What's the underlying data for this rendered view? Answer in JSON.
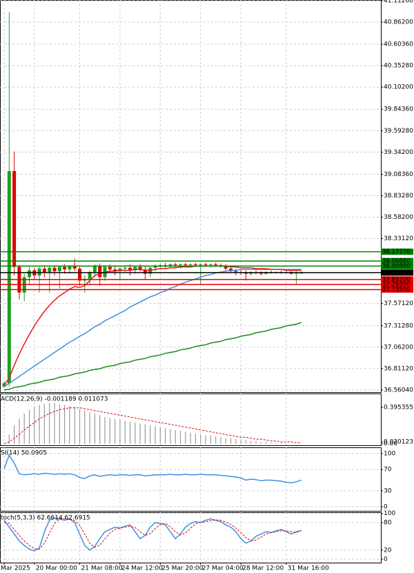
{
  "chart_data": [
    {
      "type": "candlestick",
      "categories": [
        "Mar 2025",
        null,
        null,
        null,
        null,
        null,
        "20 Mar 00:00",
        null,
        null,
        null,
        null,
        null,
        null,
        null,
        null,
        "21 Mar 08:00",
        null,
        null,
        null,
        null,
        null,
        null,
        null,
        "24 Mar 12:00",
        null,
        null,
        null,
        null,
        null,
        null,
        null,
        "25 Mar 20:00",
        null,
        null,
        null,
        null,
        null,
        null,
        null,
        "27 Mar 04:00",
        null,
        null,
        null,
        null,
        null,
        null,
        null,
        "28 Mar 12:00",
        null,
        null,
        null,
        null,
        null,
        null,
        null,
        null,
        "31 Mar 16:00",
        null,
        null,
        null
      ],
      "open": [
        36.6,
        36.64,
        39.12,
        38.0,
        37.7,
        37.88,
        37.96,
        37.9,
        37.98,
        37.94,
        37.99,
        37.95,
        38.0,
        37.97,
        38.01,
        37.98,
        37.84,
        37.86,
        37.94,
        38.01,
        37.88,
        38.0,
        37.97,
        37.95,
        37.98,
        37.99,
        37.96,
        38.0,
        37.97,
        37.92,
        37.99,
        38.01,
        38.02,
        38.01,
        38.03,
        38.02,
        38.03,
        38.02,
        38.03,
        38.02,
        38.03,
        38.02,
        38.03,
        38.02,
        38.01,
        37.98,
        37.95,
        37.94,
        37.93,
        37.92,
        37.94,
        37.93,
        37.92,
        37.94,
        37.93,
        37.94,
        37.93,
        37.94,
        37.92,
        37.93
      ],
      "high": [
        36.66,
        40.98,
        39.35,
        38.02,
        37.92,
        38.0,
        37.99,
        38.0,
        38.02,
        38.01,
        38.02,
        38.01,
        38.03,
        38.02,
        38.1,
        38.0,
        37.9,
        37.96,
        38.03,
        38.04,
        38.02,
        38.03,
        38.02,
        38.0,
        38.02,
        38.03,
        38.01,
        38.03,
        38.01,
        38.0,
        38.03,
        38.04,
        38.05,
        38.04,
        38.05,
        38.04,
        38.05,
        38.04,
        38.05,
        38.04,
        38.05,
        38.04,
        38.05,
        38.04,
        38.03,
        38.0,
        37.98,
        37.97,
        37.96,
        37.95,
        37.96,
        37.95,
        37.95,
        37.96,
        37.95,
        37.96,
        37.95,
        37.95,
        37.95,
        37.95
      ],
      "low": [
        36.58,
        36.6,
        37.9,
        37.62,
        37.6,
        37.8,
        37.85,
        37.7,
        37.88,
        37.7,
        37.9,
        37.75,
        37.92,
        37.92,
        37.95,
        37.78,
        37.7,
        37.8,
        37.88,
        37.78,
        37.84,
        37.93,
        37.9,
        37.84,
        37.93,
        37.9,
        37.92,
        37.95,
        37.85,
        37.88,
        37.95,
        37.97,
        37.99,
        37.98,
        37.99,
        37.98,
        38.0,
        37.99,
        38.0,
        37.8,
        38.0,
        37.99,
        38.0,
        37.99,
        37.96,
        37.93,
        37.9,
        37.91,
        37.84,
        37.9,
        37.91,
        37.9,
        37.91,
        37.92,
        37.92,
        37.92,
        37.92,
        37.91,
        37.8,
        37.92
      ],
      "close": [
        36.64,
        39.12,
        38.0,
        37.7,
        37.88,
        37.96,
        37.9,
        37.98,
        37.94,
        37.99,
        37.95,
        38.0,
        37.97,
        38.01,
        37.98,
        37.84,
        37.86,
        37.94,
        38.01,
        37.88,
        38.0,
        37.97,
        37.95,
        37.98,
        37.99,
        37.96,
        38.0,
        37.97,
        37.92,
        37.99,
        38.01,
        38.02,
        38.01,
        38.03,
        38.02,
        38.03,
        38.02,
        38.03,
        38.02,
        38.03,
        38.02,
        38.03,
        38.02,
        38.01,
        37.98,
        37.95,
        37.94,
        37.93,
        37.92,
        37.94,
        37.93,
        37.92,
        37.94,
        37.93,
        37.94,
        37.93,
        37.94,
        37.92,
        37.93,
        37.93
      ],
      "up_color": "#1f9e1f",
      "down_color": "#e00000",
      "series": [
        {
          "color": "#1a8a1a",
          "values": [
            36.56,
            36.57,
            36.59,
            36.6,
            36.61,
            36.63,
            36.64,
            36.65,
            36.67,
            36.68,
            36.69,
            36.71,
            36.72,
            36.73,
            36.75,
            36.76,
            36.77,
            36.79,
            36.8,
            36.81,
            36.83,
            36.84,
            36.85,
            36.87,
            36.88,
            36.89,
            36.91,
            36.92,
            36.93,
            36.95,
            36.96,
            36.97,
            36.99,
            37.0,
            37.01,
            37.03,
            37.04,
            37.05,
            37.07,
            37.08,
            37.09,
            37.11,
            37.12,
            37.13,
            37.15,
            37.16,
            37.17,
            37.19,
            37.2,
            37.21,
            37.23,
            37.24,
            37.25,
            37.27,
            37.28,
            37.29,
            37.31,
            37.32,
            37.33,
            37.35
          ]
        },
        {
          "color": "#3d8fe0",
          "values": [
            36.6,
            36.64,
            36.68,
            36.72,
            36.76,
            36.8,
            36.84,
            36.88,
            36.92,
            36.96,
            37.0,
            37.04,
            37.08,
            37.12,
            37.15,
            37.19,
            37.22,
            37.26,
            37.3,
            37.33,
            37.37,
            37.4,
            37.43,
            37.46,
            37.49,
            37.53,
            37.56,
            37.59,
            37.62,
            37.65,
            37.67,
            37.7,
            37.72,
            37.75,
            37.77,
            37.8,
            37.82,
            37.84,
            37.86,
            37.88,
            37.9,
            37.91,
            37.93,
            37.94,
            37.95,
            37.96,
            37.96,
            37.97,
            37.97,
            37.97,
            37.97,
            37.97,
            37.97,
            37.97,
            37.97,
            37.97,
            37.97,
            37.97,
            37.97,
            37.97
          ]
        },
        {
          "color": "#e8141a",
          "values": [
            36.62,
            36.7,
            36.85,
            36.98,
            37.1,
            37.21,
            37.31,
            37.4,
            37.48,
            37.55,
            37.61,
            37.66,
            37.7,
            37.74,
            37.77,
            37.76,
            37.78,
            37.84,
            37.9,
            37.92,
            37.94,
            37.95,
            37.95,
            37.96,
            37.96,
            37.96,
            37.97,
            37.97,
            37.96,
            37.96,
            37.97,
            37.98,
            37.98,
            37.99,
            37.99,
            38.0,
            38.0,
            38.0,
            38.01,
            38.01,
            38.01,
            38.01,
            38.01,
            38.01,
            38.01,
            38.0,
            38.0,
            37.99,
            37.99,
            37.99,
            37.98,
            37.98,
            37.98,
            37.97,
            37.97,
            37.97,
            37.96,
            37.96,
            37.96,
            37.96
          ]
        }
      ],
      "levels": [
        {
          "value": 38.1777,
          "label": "38.17770",
          "color": "#008000"
        },
        {
          "value": 38.0688,
          "label": "38.06880",
          "color": "#008000"
        },
        {
          "value": 38.0099,
          "label": "38.00990",
          "color": "#008000"
        },
        {
          "value": 37.8528,
          "label": "37.85280",
          "color": "#e00000"
        },
        {
          "value": 37.7939,
          "label": "37.79390",
          "color": "#e00000"
        },
        {
          "value": 37.735,
          "label": "37.73500",
          "color": "#e00000"
        }
      ],
      "current_price": {
        "value": 37.9335,
        "label": "37.93350",
        "color": "#000000"
      },
      "ylim": [
        36.536,
        41.1205
      ],
      "yticks": [
        {
          "value": 41.1126,
          "label": "41.11260"
        },
        {
          "value": 40.862,
          "label": "40.86200"
        },
        {
          "value": 40.6036,
          "label": "40.60360"
        },
        {
          "value": 40.3528,
          "label": "40.35280"
        },
        {
          "value": 40.102,
          "label": "40.10200"
        },
        {
          "value": 39.8436,
          "label": "39.84360"
        },
        {
          "value": 39.5928,
          "label": "39.59280"
        },
        {
          "value": 39.342,
          "label": "39.34200"
        },
        {
          "value": 39.0836,
          "label": "39.08360"
        },
        {
          "value": 38.8328,
          "label": "38.83280"
        },
        {
          "value": 38.582,
          "label": "38.58200"
        },
        {
          "value": 38.3312,
          "label": "38.33120"
        },
        {
          "value": 37.5712,
          "label": "37.57120"
        },
        {
          "value": 37.3128,
          "label": "37.31280"
        },
        {
          "value": 37.062,
          "label": "37.06200"
        },
        {
          "value": 36.8112,
          "label": "36.81120"
        },
        {
          "value": 36.5604,
          "label": "36.56040"
        }
      ],
      "grid": true
    },
    {
      "type": "macd",
      "title": "ACD(12,26,9) -0.001189 0.011073",
      "series": [
        {
          "color": "#9a9a9a",
          "style": "bar",
          "values": [
            0.0,
            0.1,
            0.2,
            0.27,
            0.33,
            0.37,
            0.4,
            0.42,
            0.43,
            0.44,
            0.44,
            0.43,
            0.42,
            0.41,
            0.4,
            0.38,
            0.36,
            0.34,
            0.33,
            0.31,
            0.29,
            0.28,
            0.27,
            0.26,
            0.25,
            0.24,
            0.23,
            0.22,
            0.21,
            0.2,
            0.19,
            0.18,
            0.17,
            0.16,
            0.15,
            0.14,
            0.13,
            0.12,
            0.11,
            0.1,
            0.09,
            0.09,
            0.08,
            0.07,
            0.06,
            0.06,
            0.05,
            0.04,
            0.04,
            0.03,
            0.03,
            0.02,
            0.02,
            0.01,
            0.01,
            0.01,
            0.0,
            0.0,
            0.0,
            -0.001189
          ]
        },
        {
          "color": "#e00000",
          "style": "dashed",
          "values": [
            0.0,
            0.02,
            0.06,
            0.1,
            0.15,
            0.19,
            0.23,
            0.27,
            0.3,
            0.33,
            0.35,
            0.37,
            0.38,
            0.39,
            0.39,
            0.39,
            0.38,
            0.37,
            0.36,
            0.35,
            0.34,
            0.33,
            0.32,
            0.31,
            0.3,
            0.29,
            0.28,
            0.27,
            0.26,
            0.25,
            0.24,
            0.23,
            0.22,
            0.21,
            0.2,
            0.19,
            0.18,
            0.17,
            0.16,
            0.15,
            0.14,
            0.13,
            0.12,
            0.11,
            0.1,
            0.09,
            0.08,
            0.07,
            0.07,
            0.06,
            0.05,
            0.05,
            0.04,
            0.03,
            0.03,
            0.02,
            0.02,
            0.02,
            0.01,
            0.011073
          ]
        }
      ],
      "ylim": [
        -0.017,
        0.545
      ],
      "yticks": [
        0.395355,
        0.020123,
        {
          "value": 0,
          "label": "0.00"
        }
      ],
      "grid": false
    },
    {
      "type": "line",
      "title": "SI(14) 50.0905",
      "series": [
        {
          "color": "#3d8fe0",
          "values": [
            72,
            97,
            82,
            62,
            60,
            61,
            62,
            61,
            63,
            62,
            61,
            62,
            61,
            62,
            60,
            55,
            53,
            58,
            60,
            57,
            59,
            60,
            59,
            60,
            60,
            59,
            60,
            60,
            58,
            59,
            60,
            60,
            60,
            61,
            60,
            60,
            61,
            60,
            60,
            61,
            60,
            60,
            60,
            59,
            58,
            57,
            56,
            54,
            50,
            52,
            51,
            49,
            50,
            50,
            49,
            48,
            46,
            45,
            47,
            50.0905
          ]
        }
      ],
      "ylim": [
        -7.8,
        111.7
      ],
      "yticks": [
        100,
        70,
        30,
        0
      ],
      "grid": true
    },
    {
      "type": "line",
      "title": "toch(5,3,3) 62.6614 62.6915",
      "series": [
        {
          "color": "#3d8fe0",
          "values": [
            85,
            70,
            55,
            40,
            30,
            22,
            18,
            25,
            60,
            85,
            90,
            88,
            85,
            88,
            80,
            55,
            30,
            20,
            28,
            45,
            60,
            65,
            70,
            68,
            72,
            75,
            60,
            45,
            52,
            70,
            80,
            78,
            75,
            60,
            45,
            55,
            70,
            78,
            82,
            80,
            85,
            88,
            85,
            82,
            75,
            70,
            60,
            45,
            35,
            40,
            50,
            55,
            60,
            58,
            62,
            65,
            60,
            55,
            60,
            62.6614
          ]
        },
        {
          "color": "#e00000",
          "style": "dashed",
          "values": [
            80,
            78,
            65,
            52,
            40,
            30,
            23,
            22,
            35,
            57,
            78,
            88,
            88,
            87,
            84,
            74,
            55,
            35,
            26,
            31,
            44,
            57,
            65,
            68,
            70,
            72,
            69,
            60,
            52,
            56,
            67,
            76,
            78,
            71,
            60,
            53,
            57,
            68,
            77,
            80,
            82,
            84,
            86,
            85,
            81,
            76,
            68,
            58,
            47,
            40,
            42,
            48,
            55,
            58,
            60,
            62,
            62,
            60,
            58,
            62.6915
          ]
        }
      ],
      "ylim": [
        -7.5,
        102.5
      ],
      "yticks": [
        100,
        80,
        20,
        0
      ],
      "grid": true
    }
  ]
}
